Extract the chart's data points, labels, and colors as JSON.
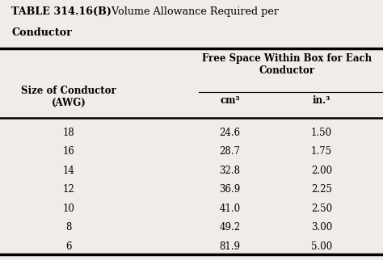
{
  "title_bold": "TABLE 314.16(B)",
  "title_rest": "  Volume Allowance Required per",
  "title_line2": "Conductor",
  "col_header_main": "Free Space Within Box for Each\nConductor",
  "col_header_left": "Size of Conductor\n(AWG)",
  "col_header_cm3": "cm³",
  "col_header_in3": "in.³",
  "rows": [
    [
      "18",
      "24.6",
      "1.50"
    ],
    [
      "16",
      "28.7",
      "1.75"
    ],
    [
      "14",
      "32.8",
      "2.00"
    ],
    [
      "12",
      "36.9",
      "2.25"
    ],
    [
      "10",
      "41.0",
      "2.50"
    ],
    [
      "8",
      "49.2",
      "3.00"
    ],
    [
      "6",
      "81.9",
      "5.00"
    ]
  ],
  "bg_color": "#f0ede8",
  "text_color": "#000000",
  "col_awg": 0.18,
  "col_cm3": 0.6,
  "col_in3": 0.84,
  "figsize": [
    4.74,
    3.22
  ],
  "dpi": 100
}
